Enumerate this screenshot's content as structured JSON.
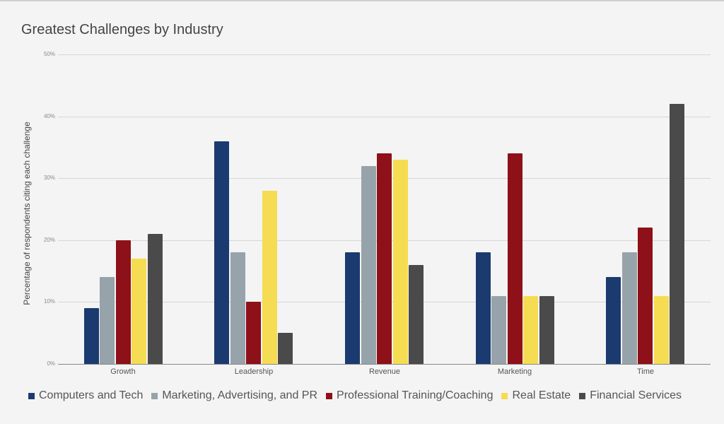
{
  "title": "Greatest Challenges by Industry",
  "chart_data": {
    "type": "bar",
    "title": "Greatest Challenges by Industry",
    "xlabel": "",
    "ylabel": "Percentage of respondents citing each challenge",
    "ylim": [
      0,
      50
    ],
    "yticks": [
      "0%",
      "10%",
      "20%",
      "30%",
      "40%",
      "50%"
    ],
    "grid": true,
    "legend_position": "bottom",
    "categories": [
      "Growth",
      "Leadership",
      "Revenue",
      "Marketing",
      "Time"
    ],
    "series": [
      {
        "name": "Computers and Tech",
        "color": "#1b3a6f",
        "values": [
          9,
          36,
          18,
          18,
          14
        ]
      },
      {
        "name": "Marketing, Advertising, and PR",
        "color": "#97a3aa",
        "values": [
          14,
          18,
          32,
          11,
          18
        ]
      },
      {
        "name": "Professional Training/Coaching",
        "color": "#8e1018",
        "values": [
          20,
          10,
          34,
          34,
          22
        ]
      },
      {
        "name": "Real Estate",
        "color": "#f5dc52",
        "values": [
          17,
          28,
          33,
          11,
          11
        ]
      },
      {
        "name": "Financial Services",
        "color": "#4a4a4a",
        "values": [
          21,
          5,
          16,
          11,
          42
        ]
      }
    ]
  }
}
